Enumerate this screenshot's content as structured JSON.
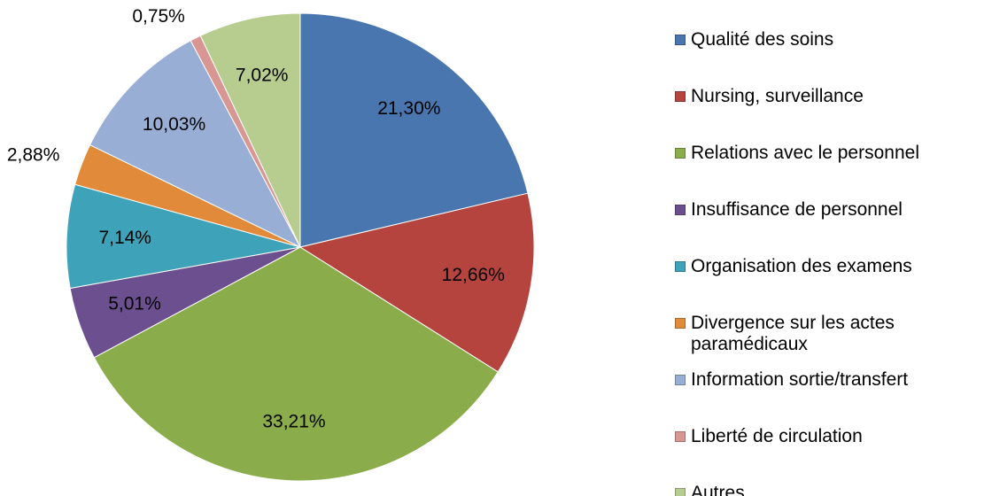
{
  "chart_data": {
    "type": "pie",
    "categories": [
      "Qualité des soins",
      "Nursing, surveillance",
      "Relations avec le personnel",
      "Insuffisance de personnel",
      "Organisation des examens",
      "Divergence sur les actes paramédicaux",
      "Information sortie/transfert",
      "Liberté de circulation",
      "Autres"
    ],
    "values": [
      21.3,
      12.66,
      33.21,
      5.01,
      7.14,
      2.88,
      10.03,
      0.75,
      7.02
    ],
    "value_labels": [
      "21,30%",
      "12,66%",
      "33,21%",
      "5,01%",
      "7,14%",
      "2,88%",
      "10,03%",
      "0,75%",
      "7,02%"
    ],
    "colors": [
      "#4a76b0",
      "#b5443f",
      "#8aac4a",
      "#6c4f8e",
      "#3ea2b9",
      "#e08a3a",
      "#98aed4",
      "#d99794",
      "#b7cc8f"
    ],
    "legend": "right"
  }
}
